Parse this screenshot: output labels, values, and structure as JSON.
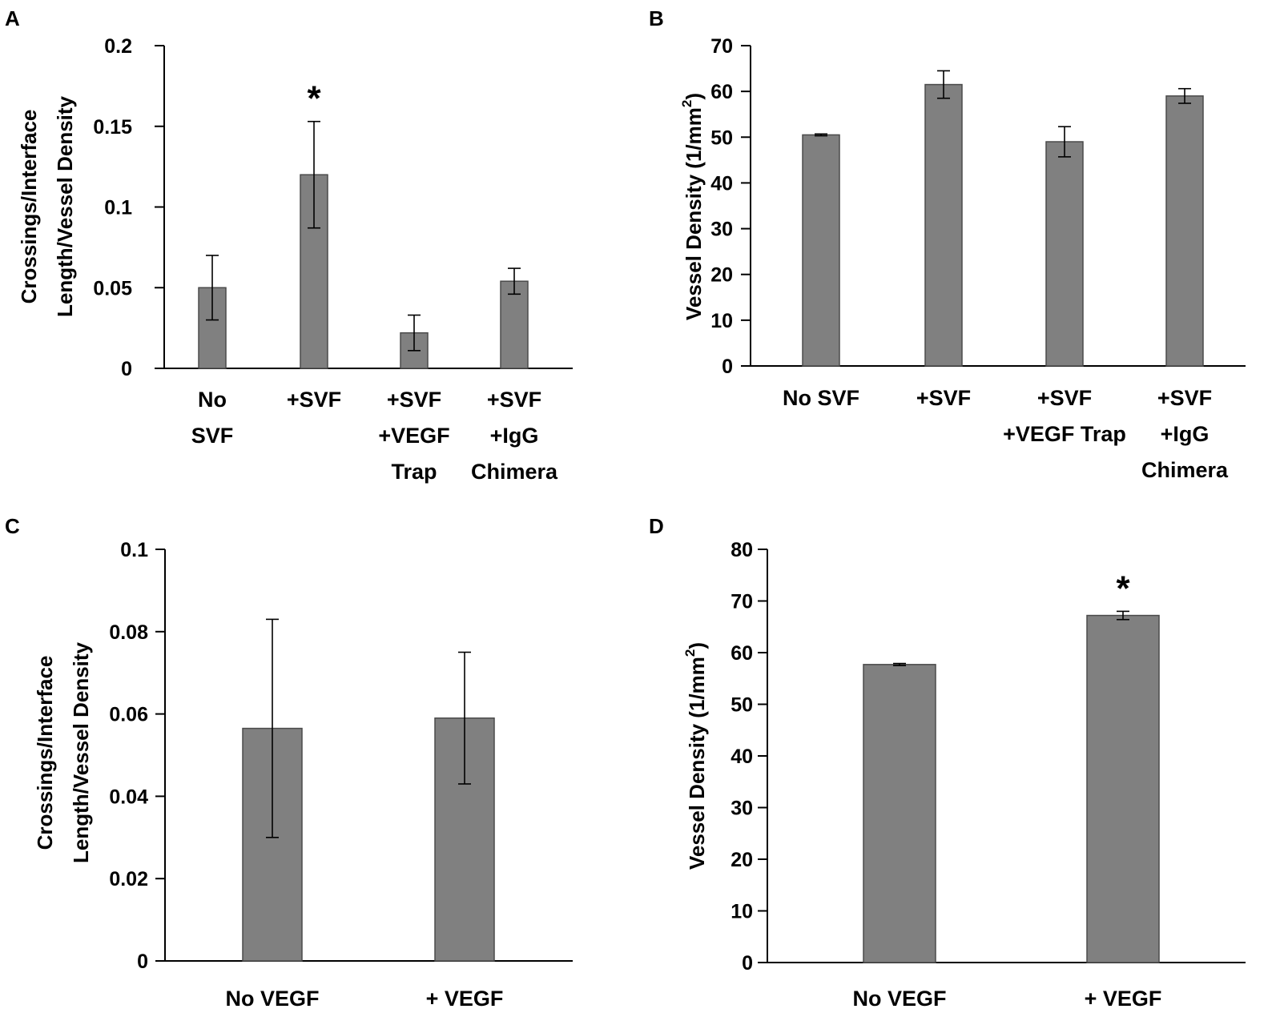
{
  "chart_data": [
    {
      "panel": "A",
      "type": "bar",
      "ylabel_lines": [
        "Crossings/Interface",
        "Length/Vessel Density"
      ],
      "ylim": [
        0,
        0.2
      ],
      "yticks": [
        0,
        0.05,
        0.1,
        0.15,
        0.2
      ],
      "ytick_labels": [
        "0",
        "0.05",
        "0.1",
        "0.15",
        "0.2"
      ],
      "categories": [
        {
          "lines": [
            "No",
            "SVF"
          ],
          "value": 0.05,
          "err": 0.02,
          "star": ""
        },
        {
          "lines": [
            "+SVF"
          ],
          "value": 0.12,
          "err": 0.033,
          "star": "*"
        },
        {
          "lines": [
            "+SVF",
            "+VEGF",
            "Trap"
          ],
          "value": 0.022,
          "err": 0.011,
          "star": ""
        },
        {
          "lines": [
            "+SVF",
            "+IgG",
            "Chimera"
          ],
          "value": 0.054,
          "err": 0.008,
          "star": ""
        }
      ],
      "bar_color": "#808080"
    },
    {
      "panel": "B",
      "type": "bar",
      "ylabel_lines": [
        "Vessel Density (1/mm²)"
      ],
      "ylim": [
        0,
        70
      ],
      "yticks": [
        0,
        10,
        20,
        30,
        40,
        50,
        60,
        70
      ],
      "ytick_labels": [
        "0",
        "10",
        "20",
        "30",
        "40",
        "50",
        "60",
        "70"
      ],
      "categories": [
        {
          "lines": [
            "No SVF"
          ],
          "value": 50.5,
          "err": 0.2,
          "star": ""
        },
        {
          "lines": [
            "+SVF"
          ],
          "value": 61.5,
          "err": 3.0,
          "star": ""
        },
        {
          "lines": [
            "+SVF",
            "+VEGF Trap"
          ],
          "value": 49.0,
          "err": 3.3,
          "star": ""
        },
        {
          "lines": [
            "+SVF",
            "+IgG",
            "Chimera"
          ],
          "value": 59.0,
          "err": 1.6,
          "star": ""
        }
      ],
      "bar_color": "#808080"
    },
    {
      "panel": "C",
      "type": "bar",
      "ylabel_lines": [
        "Crossings/Interface",
        "Length/Vessel Density"
      ],
      "ylim": [
        0,
        0.1
      ],
      "yticks": [
        0,
        0.02,
        0.04,
        0.06,
        0.08,
        0.1
      ],
      "ytick_labels": [
        "0",
        "0.02",
        "0.04",
        "0.06",
        "0.08",
        "0.1"
      ],
      "categories": [
        {
          "lines": [
            "No VEGF"
          ],
          "value": 0.0565,
          "err": 0.0265,
          "star": ""
        },
        {
          "lines": [
            "+ VEGF"
          ],
          "value": 0.059,
          "err": 0.016,
          "star": ""
        }
      ],
      "bar_color": "#808080"
    },
    {
      "panel": "D",
      "type": "bar",
      "ylabel_lines": [
        "Vessel Density (1/mm²)"
      ],
      "ylim": [
        0,
        80
      ],
      "yticks": [
        0,
        10,
        20,
        30,
        40,
        50,
        60,
        70,
        80
      ],
      "ytick_labels": [
        "0",
        "10",
        "20",
        "30",
        "40",
        "50",
        "60",
        "70",
        "80"
      ],
      "categories": [
        {
          "lines": [
            "No VEGF"
          ],
          "value": 57.7,
          "err": 0.2,
          "star": ""
        },
        {
          "lines": [
            "+ VEGF"
          ],
          "value": 67.2,
          "err": 0.8,
          "star": "*"
        }
      ],
      "bar_color": "#808080"
    }
  ]
}
